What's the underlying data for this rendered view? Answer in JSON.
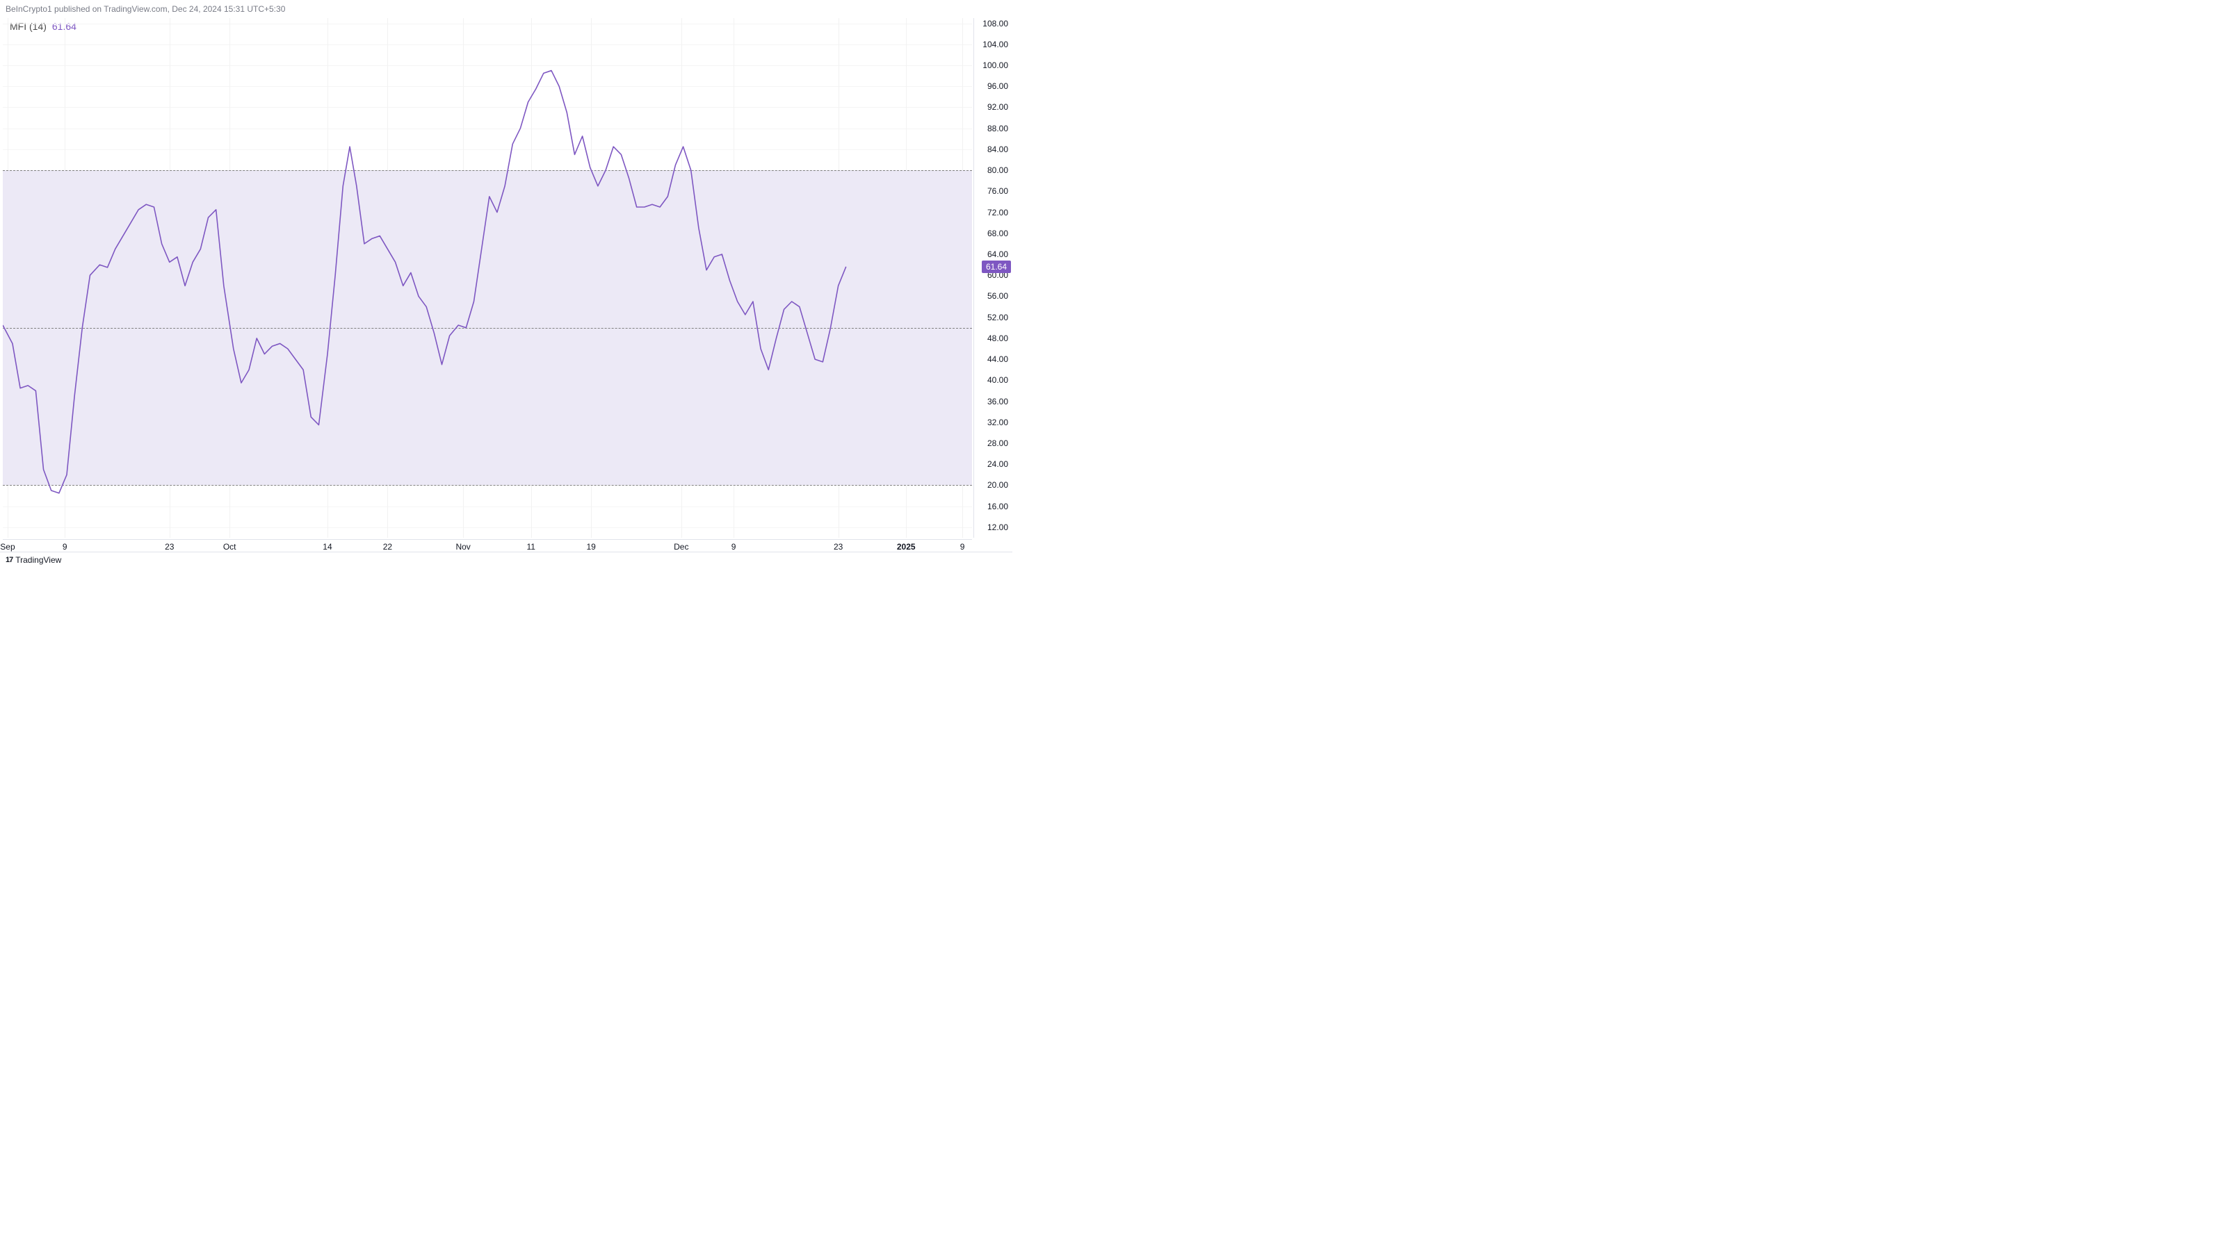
{
  "header": {
    "attribution": "BeInCrypto1 published on TradingView.com, Dec 24, 2024 15:31 UTC+5:30"
  },
  "indicator": {
    "name": "MFI (14)",
    "value": "61.64"
  },
  "chart": {
    "type": "line",
    "line_color": "#7e57c2",
    "line_width": 1.6,
    "background_color": "#ffffff",
    "band_fill_color": "#ece9f6",
    "band_line_color": "#808080",
    "band_upper": 80,
    "band_middle": 50,
    "band_lower": 20,
    "grid_color": "#f2f2f2",
    "ylim": [
      10,
      109
    ],
    "y_ticks": [
      "108.00",
      "104.00",
      "100.00",
      "96.00",
      "92.00",
      "88.00",
      "84.00",
      "80.00",
      "76.00",
      "72.00",
      "68.00",
      "64.00",
      "60.00",
      "56.00",
      "52.00",
      "48.00",
      "44.00",
      "40.00",
      "36.00",
      "32.00",
      "28.00",
      "24.00",
      "20.00",
      "16.00",
      "12.00"
    ],
    "y_tick_values": [
      108,
      104,
      100,
      96,
      92,
      88,
      84,
      80,
      76,
      72,
      68,
      64,
      60,
      56,
      52,
      48,
      44,
      40,
      36,
      32,
      28,
      24,
      20,
      16,
      12
    ],
    "y_current_value": 61.64,
    "y_current_label": "61.64",
    "y_current_color": "#7e57c2",
    "x_ticks": [
      {
        "label": "Sep",
        "pos": 0.005,
        "bold": false
      },
      {
        "label": "9",
        "pos": 0.064,
        "bold": false
      },
      {
        "label": "23",
        "pos": 0.172,
        "bold": false
      },
      {
        "label": "Oct",
        "pos": 0.234,
        "bold": false
      },
      {
        "label": "14",
        "pos": 0.335,
        "bold": false
      },
      {
        "label": "22",
        "pos": 0.397,
        "bold": false
      },
      {
        "label": "Nov",
        "pos": 0.475,
        "bold": false
      },
      {
        "label": "11",
        "pos": 0.545,
        "bold": false
      },
      {
        "label": "19",
        "pos": 0.607,
        "bold": false
      },
      {
        "label": "Dec",
        "pos": 0.7,
        "bold": false
      },
      {
        "label": "9",
        "pos": 0.754,
        "bold": false
      },
      {
        "label": "23",
        "pos": 0.862,
        "bold": false
      },
      {
        "label": "2025",
        "pos": 0.932,
        "bold": true
      },
      {
        "label": "9",
        "pos": 0.99,
        "bold": false
      }
    ],
    "series": [
      {
        "x": 0.0,
        "y": 50.5
      },
      {
        "x": 0.01,
        "y": 47.0
      },
      {
        "x": 0.018,
        "y": 38.5
      },
      {
        "x": 0.026,
        "y": 39.0
      },
      {
        "x": 0.034,
        "y": 38.0
      },
      {
        "x": 0.042,
        "y": 23.0
      },
      {
        "x": 0.05,
        "y": 19.0
      },
      {
        "x": 0.058,
        "y": 18.5
      },
      {
        "x": 0.066,
        "y": 22.0
      },
      {
        "x": 0.074,
        "y": 37.0
      },
      {
        "x": 0.082,
        "y": 50.0
      },
      {
        "x": 0.09,
        "y": 60.0
      },
      {
        "x": 0.1,
        "y": 62.0
      },
      {
        "x": 0.108,
        "y": 61.5
      },
      {
        "x": 0.116,
        "y": 65.0
      },
      {
        "x": 0.124,
        "y": 67.5
      },
      {
        "x": 0.132,
        "y": 70.0
      },
      {
        "x": 0.14,
        "y": 72.5
      },
      {
        "x": 0.148,
        "y": 73.5
      },
      {
        "x": 0.156,
        "y": 73.0
      },
      {
        "x": 0.164,
        "y": 66.0
      },
      {
        "x": 0.172,
        "y": 62.5
      },
      {
        "x": 0.18,
        "y": 63.5
      },
      {
        "x": 0.188,
        "y": 58.0
      },
      {
        "x": 0.196,
        "y": 62.5
      },
      {
        "x": 0.204,
        "y": 65.0
      },
      {
        "x": 0.212,
        "y": 71.0
      },
      {
        "x": 0.22,
        "y": 72.5
      },
      {
        "x": 0.228,
        "y": 58.0
      },
      {
        "x": 0.238,
        "y": 46.0
      },
      {
        "x": 0.246,
        "y": 39.5
      },
      {
        "x": 0.254,
        "y": 42.0
      },
      {
        "x": 0.262,
        "y": 48.0
      },
      {
        "x": 0.27,
        "y": 45.0
      },
      {
        "x": 0.278,
        "y": 46.5
      },
      {
        "x": 0.286,
        "y": 47.0
      },
      {
        "x": 0.294,
        "y": 46.0
      },
      {
        "x": 0.302,
        "y": 44.0
      },
      {
        "x": 0.31,
        "y": 42.0
      },
      {
        "x": 0.318,
        "y": 33.0
      },
      {
        "x": 0.326,
        "y": 31.5
      },
      {
        "x": 0.335,
        "y": 45.0
      },
      {
        "x": 0.343,
        "y": 60.0
      },
      {
        "x": 0.351,
        "y": 77.0
      },
      {
        "x": 0.358,
        "y": 84.5
      },
      {
        "x": 0.365,
        "y": 77.0
      },
      {
        "x": 0.373,
        "y": 66.0
      },
      {
        "x": 0.381,
        "y": 67.0
      },
      {
        "x": 0.389,
        "y": 67.5
      },
      {
        "x": 0.397,
        "y": 65.0
      },
      {
        "x": 0.405,
        "y": 62.5
      },
      {
        "x": 0.413,
        "y": 58.0
      },
      {
        "x": 0.421,
        "y": 60.5
      },
      {
        "x": 0.429,
        "y": 56.0
      },
      {
        "x": 0.437,
        "y": 54.0
      },
      {
        "x": 0.445,
        "y": 49.0
      },
      {
        "x": 0.453,
        "y": 43.0
      },
      {
        "x": 0.461,
        "y": 48.5
      },
      {
        "x": 0.47,
        "y": 50.5
      },
      {
        "x": 0.478,
        "y": 50.0
      },
      {
        "x": 0.486,
        "y": 55.0
      },
      {
        "x": 0.494,
        "y": 65.0
      },
      {
        "x": 0.502,
        "y": 75.0
      },
      {
        "x": 0.51,
        "y": 72.0
      },
      {
        "x": 0.518,
        "y": 77.0
      },
      {
        "x": 0.526,
        "y": 85.0
      },
      {
        "x": 0.534,
        "y": 88.0
      },
      {
        "x": 0.542,
        "y": 93.0
      },
      {
        "x": 0.55,
        "y": 95.5
      },
      {
        "x": 0.558,
        "y": 98.5
      },
      {
        "x": 0.566,
        "y": 99.0
      },
      {
        "x": 0.574,
        "y": 96.0
      },
      {
        "x": 0.582,
        "y": 91.0
      },
      {
        "x": 0.59,
        "y": 83.0
      },
      {
        "x": 0.598,
        "y": 86.5
      },
      {
        "x": 0.606,
        "y": 80.5
      },
      {
        "x": 0.614,
        "y": 77.0
      },
      {
        "x": 0.622,
        "y": 80.0
      },
      {
        "x": 0.63,
        "y": 84.5
      },
      {
        "x": 0.638,
        "y": 83.0
      },
      {
        "x": 0.646,
        "y": 78.5
      },
      {
        "x": 0.654,
        "y": 73.0
      },
      {
        "x": 0.662,
        "y": 73.0
      },
      {
        "x": 0.67,
        "y": 73.5
      },
      {
        "x": 0.678,
        "y": 73.0
      },
      {
        "x": 0.686,
        "y": 75.0
      },
      {
        "x": 0.694,
        "y": 81.0
      },
      {
        "x": 0.702,
        "y": 84.5
      },
      {
        "x": 0.71,
        "y": 80.0
      },
      {
        "x": 0.718,
        "y": 69.0
      },
      {
        "x": 0.726,
        "y": 61.0
      },
      {
        "x": 0.734,
        "y": 63.5
      },
      {
        "x": 0.742,
        "y": 64.0
      },
      {
        "x": 0.75,
        "y": 59.0
      },
      {
        "x": 0.758,
        "y": 55.0
      },
      {
        "x": 0.766,
        "y": 52.5
      },
      {
        "x": 0.774,
        "y": 55.0
      },
      {
        "x": 0.782,
        "y": 46.0
      },
      {
        "x": 0.79,
        "y": 42.0
      },
      {
        "x": 0.798,
        "y": 48.0
      },
      {
        "x": 0.806,
        "y": 53.5
      },
      {
        "x": 0.814,
        "y": 55.0
      },
      {
        "x": 0.822,
        "y": 54.0
      },
      {
        "x": 0.83,
        "y": 49.0
      },
      {
        "x": 0.838,
        "y": 44.0
      },
      {
        "x": 0.846,
        "y": 43.5
      },
      {
        "x": 0.854,
        "y": 50.0
      },
      {
        "x": 0.862,
        "y": 58.0
      },
      {
        "x": 0.87,
        "y": 61.64
      }
    ]
  },
  "footer": {
    "logo_glyph": "17",
    "brand": "TradingView"
  }
}
